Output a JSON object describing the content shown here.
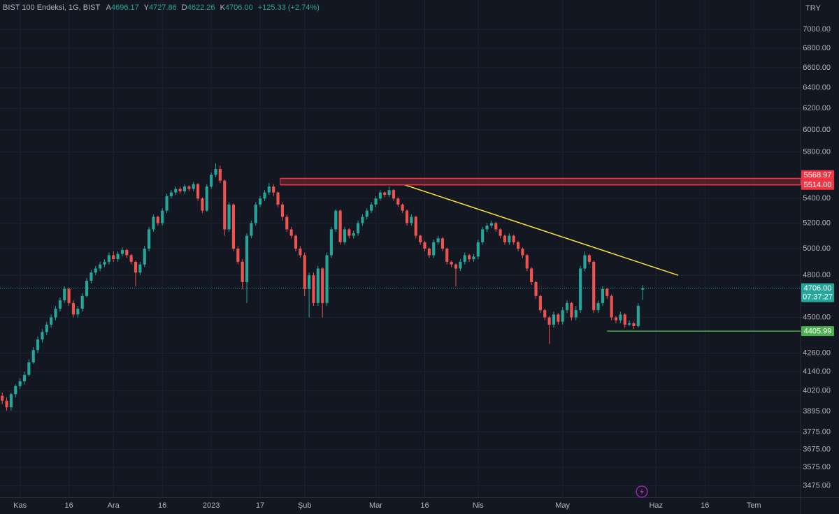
{
  "header": {
    "symbol": "BIST 100 Endeksi, 1G, BIST",
    "fields": [
      {
        "key": "A",
        "value": "4696.17"
      },
      {
        "key": "Y",
        "value": "4727.86"
      },
      {
        "key": "D",
        "value": "4622.26"
      },
      {
        "key": "K",
        "value": "4706.00"
      }
    ],
    "change": "+125.33 (+2.74%)",
    "currency": "TRY"
  },
  "chart_data": {
    "type": "candlestick",
    "log_scale": true,
    "grid": true,
    "up_color": "#26a69a",
    "down_color": "#ef5350",
    "open": [
      3990,
      3960,
      3920,
      4000,
      4050,
      4080,
      4120,
      4200,
      4280,
      4350,
      4400,
      4450,
      4500,
      4560,
      4620,
      4700,
      4600,
      4520,
      4560,
      4650,
      4760,
      4820,
      4850,
      4880,
      4900,
      4950,
      4920,
      4960,
      4990,
      4950,
      4900,
      4820,
      4880,
      5000,
      5150,
      5250,
      5200,
      5300,
      5420,
      5450,
      5480,
      5460,
      5500,
      5480,
      5520,
      5400,
      5300,
      5500,
      5600,
      5650,
      5550,
      5150,
      5350,
      5000,
      4900,
      4750,
      5100,
      5200,
      5350,
      5400,
      5450,
      5500,
      5450,
      5350,
      5250,
      5150,
      5100,
      5000,
      4950,
      4700,
      4800,
      4600,
      4850,
      4600,
      4950,
      5150,
      5300,
      5050,
      5150,
      5100,
      5120,
      5200,
      5250,
      5300,
      5350,
      5400,
      5450,
      5430,
      5470,
      5400,
      5350,
      5300,
      5200,
      5250,
      5100,
      5050,
      5000,
      4950,
      5050,
      5080,
      5000,
      4900,
      4880,
      4850,
      4900,
      4950,
      4920,
      4940,
      5050,
      5150,
      5180,
      5200,
      5150,
      5100,
      5050,
      5100,
      5050,
      5000,
      4950,
      4850,
      4750,
      4650,
      4550,
      4500,
      4450,
      4520,
      4470,
      4550,
      4600,
      4500,
      4550,
      4850,
      4950,
      4900,
      4550,
      4600,
      4700,
      4650,
      4500,
      4480,
      4520,
      4450,
      4460,
      4440,
      4696.17
    ],
    "high": [
      4010,
      3980,
      4010,
      4060,
      4100,
      4140,
      4220,
      4300,
      4370,
      4420,
      4470,
      4520,
      4580,
      4640,
      4720,
      4710,
      4620,
      4580,
      4670,
      4780,
      4840,
      4870,
      4900,
      4920,
      4970,
      4980,
      4980,
      5010,
      5000,
      4960,
      4910,
      4900,
      5020,
      5170,
      5270,
      5260,
      5320,
      5440,
      5470,
      5500,
      5500,
      5520,
      5510,
      5540,
      5530,
      5410,
      5520,
      5620,
      5700,
      5680,
      5560,
      5370,
      5360,
      5020,
      4920,
      5120,
      5220,
      5370,
      5420,
      5470,
      5530,
      5520,
      5460,
      5370,
      5270,
      5170,
      5110,
      5020,
      4970,
      4820,
      4820,
      4870,
      4860,
      4970,
      5170,
      5310,
      5310,
      5170,
      5160,
      5140,
      5220,
      5270,
      5320,
      5370,
      5420,
      5470,
      5460,
      5500,
      5480,
      5410,
      5360,
      5310,
      5270,
      5260,
      5110,
      5060,
      5010,
      5070,
      5100,
      5090,
      5010,
      4910,
      4890,
      4920,
      4970,
      4960,
      4960,
      5070,
      5170,
      5200,
      5220,
      5210,
      5160,
      5110,
      5120,
      5110,
      5060,
      5010,
      4960,
      4860,
      4760,
      4660,
      4560,
      4510,
      4540,
      4530,
      4570,
      4620,
      4610,
      4580,
      4870,
      4980,
      4960,
      4910,
      4620,
      4720,
      4710,
      4660,
      4510,
      4540,
      4530,
      4480,
      4470,
      4600,
      4727.86
    ],
    "low": [
      3940,
      3900,
      3900,
      3980,
      4030,
      4060,
      4110,
      4190,
      4260,
      4330,
      4380,
      4430,
      4480,
      4540,
      4600,
      4580,
      4500,
      4500,
      4540,
      4640,
      4740,
      4800,
      4830,
      4860,
      4880,
      4900,
      4900,
      4940,
      4930,
      4880,
      4720,
      4800,
      4860,
      4980,
      5130,
      5180,
      5180,
      5280,
      5400,
      5430,
      5440,
      5440,
      5460,
      5460,
      5380,
      5280,
      5290,
      5480,
      5580,
      5530,
      5100,
      5130,
      4980,
      4880,
      4700,
      4600,
      5080,
      5180,
      5330,
      5380,
      5430,
      5420,
      5330,
      5220,
      5130,
      5080,
      4980,
      4930,
      4650,
      4500,
      4580,
      4580,
      4500,
      4580,
      4930,
      5130,
      5030,
      5030,
      5080,
      5080,
      5100,
      5180,
      5230,
      5280,
      5330,
      5380,
      5410,
      5410,
      5380,
      5330,
      5280,
      5180,
      5180,
      5080,
      5030,
      4980,
      4930,
      4930,
      5030,
      4980,
      4880,
      4860,
      4720,
      4830,
      4880,
      4900,
      4900,
      4920,
      5030,
      5130,
      5160,
      5130,
      5080,
      5030,
      5030,
      5030,
      4980,
      4930,
      4830,
      4730,
      4630,
      4530,
      4480,
      4320,
      4430,
      4450,
      4450,
      4530,
      4480,
      4480,
      4530,
      4830,
      4880,
      4530,
      4530,
      4580,
      4630,
      4480,
      4460,
      4460,
      4430,
      4440,
      4420,
      4430,
      4622.26
    ],
    "close": [
      3960,
      3920,
      4000,
      4050,
      4080,
      4120,
      4200,
      4280,
      4350,
      4400,
      4450,
      4500,
      4560,
      4620,
      4700,
      4600,
      4520,
      4560,
      4650,
      4760,
      4820,
      4850,
      4880,
      4900,
      4950,
      4920,
      4960,
      4990,
      4950,
      4900,
      4820,
      4880,
      5000,
      5150,
      5250,
      5200,
      5300,
      5420,
      5450,
      5480,
      5460,
      5500,
      5480,
      5520,
      5400,
      5300,
      5500,
      5600,
      5650,
      5550,
      5150,
      5350,
      5000,
      4900,
      4750,
      5100,
      5200,
      5350,
      5400,
      5450,
      5500,
      5450,
      5350,
      5250,
      5150,
      5100,
      5000,
      4950,
      4700,
      4800,
      4600,
      4850,
      4600,
      4950,
      5150,
      5300,
      5050,
      5150,
      5100,
      5120,
      5200,
      5250,
      5300,
      5350,
      5400,
      5450,
      5430,
      5470,
      5400,
      5350,
      5300,
      5200,
      5250,
      5100,
      5050,
      5000,
      4950,
      5050,
      5080,
      5000,
      4900,
      4880,
      4850,
      4900,
      4950,
      4920,
      4940,
      5050,
      5150,
      5180,
      5200,
      5150,
      5100,
      5050,
      5100,
      5050,
      5000,
      4950,
      4850,
      4750,
      4650,
      4550,
      4500,
      4450,
      4520,
      4470,
      4550,
      4600,
      4500,
      4550,
      4850,
      4950,
      4900,
      4550,
      4600,
      4700,
      4650,
      4500,
      4480,
      4520,
      4450,
      4460,
      4440,
      4580.67,
      4706
    ],
    "xlim": [
      -0.5,
      179.5
    ],
    "xticks": [
      {
        "value": 4,
        "label": "Kas"
      },
      {
        "value": 15,
        "label": "16"
      },
      {
        "value": 25,
        "label": "Ara"
      },
      {
        "value": 36,
        "label": "16"
      },
      {
        "value": 47,
        "label": "2023"
      },
      {
        "value": 58,
        "label": "17"
      },
      {
        "value": 68,
        "label": "Şub"
      },
      {
        "value": 84,
        "label": "Mar"
      },
      {
        "value": 95,
        "label": "16"
      },
      {
        "value": 107,
        "label": "Nis"
      },
      {
        "value": 126,
        "label": "May"
      },
      {
        "value": 147,
        "label": "Haz"
      },
      {
        "value": 158,
        "label": "16"
      },
      {
        "value": 169,
        "label": "Tem"
      }
    ],
    "ylim": [
      3415,
      7322
    ],
    "yticks": [
      {
        "value": 7000,
        "label": "7000.00"
      },
      {
        "value": 6800,
        "label": "6800.00"
      },
      {
        "value": 6600,
        "label": "6600.00"
      },
      {
        "value": 6400,
        "label": "6400.00"
      },
      {
        "value": 6200,
        "label": "6200.00"
      },
      {
        "value": 6000,
        "label": "6000.00"
      },
      {
        "value": 5800,
        "label": "5800.00"
      },
      {
        "value": 5400,
        "label": "5400.00"
      },
      {
        "value": 5200,
        "label": "5200.00"
      },
      {
        "value": 5000,
        "label": "5000.00"
      },
      {
        "value": 4800,
        "label": "4800.00"
      },
      {
        "value": 4500,
        "label": "4500.00"
      },
      {
        "value": 4260,
        "label": "4260.00"
      },
      {
        "value": 4140,
        "label": "4140.00"
      },
      {
        "value": 4020,
        "label": "4020.00"
      },
      {
        "value": 3895,
        "label": "3895.00"
      },
      {
        "value": 3775,
        "label": "3775.00"
      },
      {
        "value": 3675,
        "label": "3675.00"
      },
      {
        "value": 3575,
        "label": "3575.00"
      },
      {
        "value": 3475,
        "label": "3475.00"
      }
    ],
    "levels": [
      {
        "value": 5568.97,
        "color": "#f23645",
        "from_index": 62.5
      },
      {
        "value": 5514,
        "label": "5514.00",
        "color": "#f23645",
        "from_index": 62.5
      },
      {
        "value": 4405.99,
        "color": "#4caf50",
        "from_index": 136
      }
    ],
    "zone_fill": "rgba(242,54,69,0.28)",
    "last_price": {
      "value": 4706,
      "label": "4706.00",
      "countdown": "07:37:27",
      "color": "#26a69a"
    },
    "trendline": {
      "from": {
        "index": 90.5,
        "value": 5514
      },
      "to": {
        "index": 152,
        "value": 4800
      },
      "color": "#f5e23b"
    }
  }
}
